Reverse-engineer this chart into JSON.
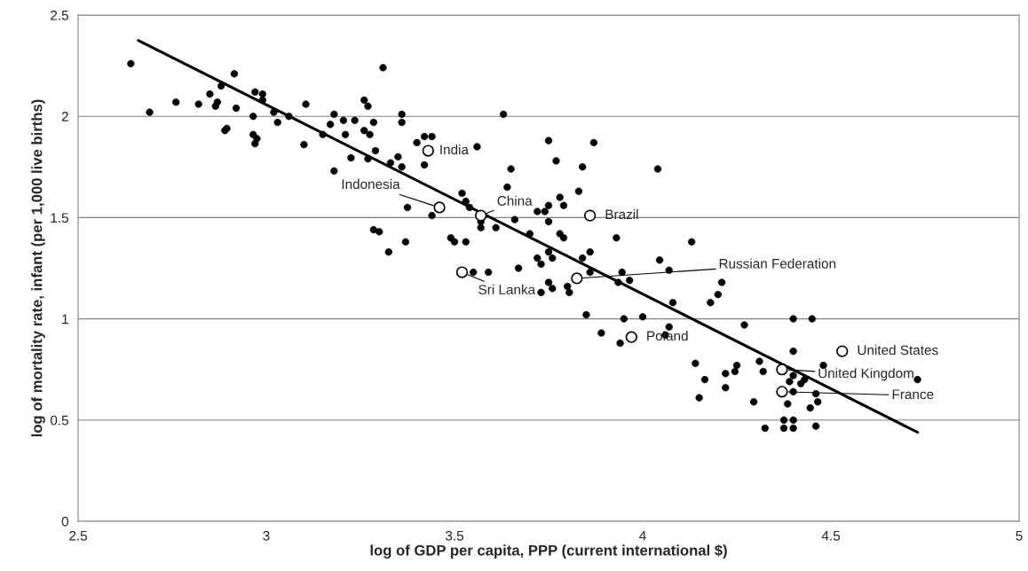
{
  "chart_data": {
    "type": "scatter",
    "xlabel": "log of GDP per capita, PPP (current international $)",
    "ylabel": "log of mortality rate, infant (per 1,000 live births)",
    "xlim": [
      2.5,
      5
    ],
    "xticks": [
      2.5,
      3,
      3.5,
      4,
      4.5,
      5
    ],
    "ylim": [
      0,
      2.5
    ],
    "yticks": [
      0,
      0.5,
      1,
      1.5,
      2,
      2.5
    ],
    "grid": "y",
    "marker": "circle",
    "series": [
      {
        "color": "#000000",
        "x": [
          2.64,
          2.69,
          2.76,
          2.82,
          2.85,
          2.87,
          2.865,
          2.88,
          2.915,
          2.92,
          2.89,
          2.895,
          2.965,
          2.97,
          2.99,
          2.99,
          2.965,
          2.975,
          2.97,
          3.02,
          3.03,
          3.06,
          3.105,
          3.1,
          3.15,
          3.17,
          3.18,
          3.18,
          3.205,
          3.235,
          3.21,
          3.225,
          3.26,
          3.27,
          3.26,
          3.275,
          3.31,
          3.36,
          3.36,
          3.63,
          3.285,
          3.42,
          3.44,
          3.4,
          3.56,
          3.29,
          3.27,
          3.33,
          3.35,
          3.36,
          3.42,
          3.75,
          3.87,
          3.77,
          3.84,
          4.04,
          3.65,
          3.64,
          3.83,
          3.78,
          3.79,
          3.75,
          3.52,
          3.53,
          3.54,
          3.375,
          3.44,
          3.72,
          3.74,
          3.66,
          3.75,
          3.57,
          3.57,
          3.61,
          3.285,
          3.3,
          3.37,
          3.325,
          3.49,
          3.5,
          3.53,
          3.7,
          3.78,
          3.79,
          3.93,
          4.13,
          3.72,
          3.75,
          3.76,
          3.73,
          3.84,
          3.86,
          4.045,
          3.67,
          3.55,
          3.59,
          3.86,
          3.945,
          4.07,
          3.965,
          3.935,
          3.75,
          3.76,
          3.73,
          3.8,
          3.805,
          4.08,
          3.85,
          3.95,
          4.0,
          4.07,
          3.89,
          3.94,
          4.06,
          4.14,
          4.21,
          4.2,
          4.18,
          4.27,
          4.4,
          4.45,
          4.4,
          4.48,
          4.73,
          4.165,
          4.15,
          4.22,
          4.22,
          4.25,
          4.245,
          4.31,
          4.32,
          4.295,
          4.4,
          4.39,
          4.42,
          4.43,
          4.4,
          4.46,
          4.465,
          4.385,
          4.445,
          4.375,
          4.4,
          4.325,
          4.375,
          4.4,
          4.46
        ],
        "values": [
          2.26,
          2.02,
          2.07,
          2.06,
          2.11,
          2.07,
          2.05,
          2.15,
          2.21,
          2.04,
          1.93,
          1.94,
          2.0,
          2.12,
          2.11,
          2.08,
          1.91,
          1.89,
          1.865,
          2.02,
          1.97,
          2.0,
          2.06,
          1.86,
          1.91,
          1.96,
          2.01,
          1.73,
          1.98,
          1.98,
          1.91,
          1.795,
          2.08,
          2.05,
          1.93,
          1.91,
          2.24,
          2.01,
          1.97,
          2.01,
          1.97,
          1.9,
          1.9,
          1.87,
          1.85,
          1.83,
          1.79,
          1.77,
          1.8,
          1.75,
          1.76,
          1.88,
          1.87,
          1.78,
          1.75,
          1.74,
          1.74,
          1.65,
          1.63,
          1.6,
          1.56,
          1.56,
          1.62,
          1.58,
          1.55,
          1.55,
          1.51,
          1.53,
          1.53,
          1.49,
          1.48,
          1.48,
          1.45,
          1.45,
          1.44,
          1.43,
          1.38,
          1.33,
          1.4,
          1.38,
          1.38,
          1.42,
          1.42,
          1.4,
          1.4,
          1.38,
          1.3,
          1.33,
          1.3,
          1.27,
          1.3,
          1.33,
          1.29,
          1.25,
          1.23,
          1.23,
          1.23,
          1.23,
          1.24,
          1.19,
          1.18,
          1.18,
          1.15,
          1.13,
          1.16,
          1.13,
          1.08,
          1.02,
          1.0,
          1.01,
          0.96,
          0.93,
          0.88,
          0.92,
          0.78,
          1.18,
          1.12,
          1.08,
          0.97,
          1.0,
          1.0,
          0.84,
          0.77,
          0.7,
          0.7,
          0.61,
          0.73,
          0.66,
          0.77,
          0.74,
          0.79,
          0.74,
          0.59,
          0.72,
          0.69,
          0.68,
          0.7,
          0.64,
          0.63,
          0.59,
          0.58,
          0.56,
          0.5,
          0.5,
          0.46,
          0.46,
          0.46,
          0.47
        ]
      },
      {
        "color": "#ffffff",
        "x": [
          3.43,
          3.46,
          3.57,
          3.86,
          3.825,
          3.52,
          3.97,
          4.53,
          4.37,
          4.37
        ],
        "values": [
          1.83,
          1.55,
          1.51,
          1.51,
          1.2,
          1.23,
          0.91,
          0.84,
          0.75,
          0.64
        ]
      },
      {
        "type": "line",
        "color": "#000000",
        "marker": "none",
        "line_style": "solid",
        "x": [
          2.66,
          4.73
        ],
        "values": [
          2.375,
          0.44
        ]
      }
    ],
    "annotations": [
      {
        "text": "India",
        "x": 3.43,
        "y": 1.83
      },
      {
        "text": "Indonesia",
        "x": 3.46,
        "y": 1.55
      },
      {
        "text": "China",
        "x": 3.57,
        "y": 1.51
      },
      {
        "text": "Brazil",
        "x": 3.86,
        "y": 1.51
      },
      {
        "text": "Russian Federation",
        "x": 3.825,
        "y": 1.2
      },
      {
        "text": "Sri Lanka",
        "x": 3.52,
        "y": 1.23
      },
      {
        "text": "Poland",
        "x": 3.97,
        "y": 0.91
      },
      {
        "text": "United States",
        "x": 4.53,
        "y": 0.84
      },
      {
        "text": "United Kingdom",
        "x": 4.37,
        "y": 0.75
      },
      {
        "text": "France",
        "x": 4.37,
        "y": 0.64
      }
    ]
  }
}
